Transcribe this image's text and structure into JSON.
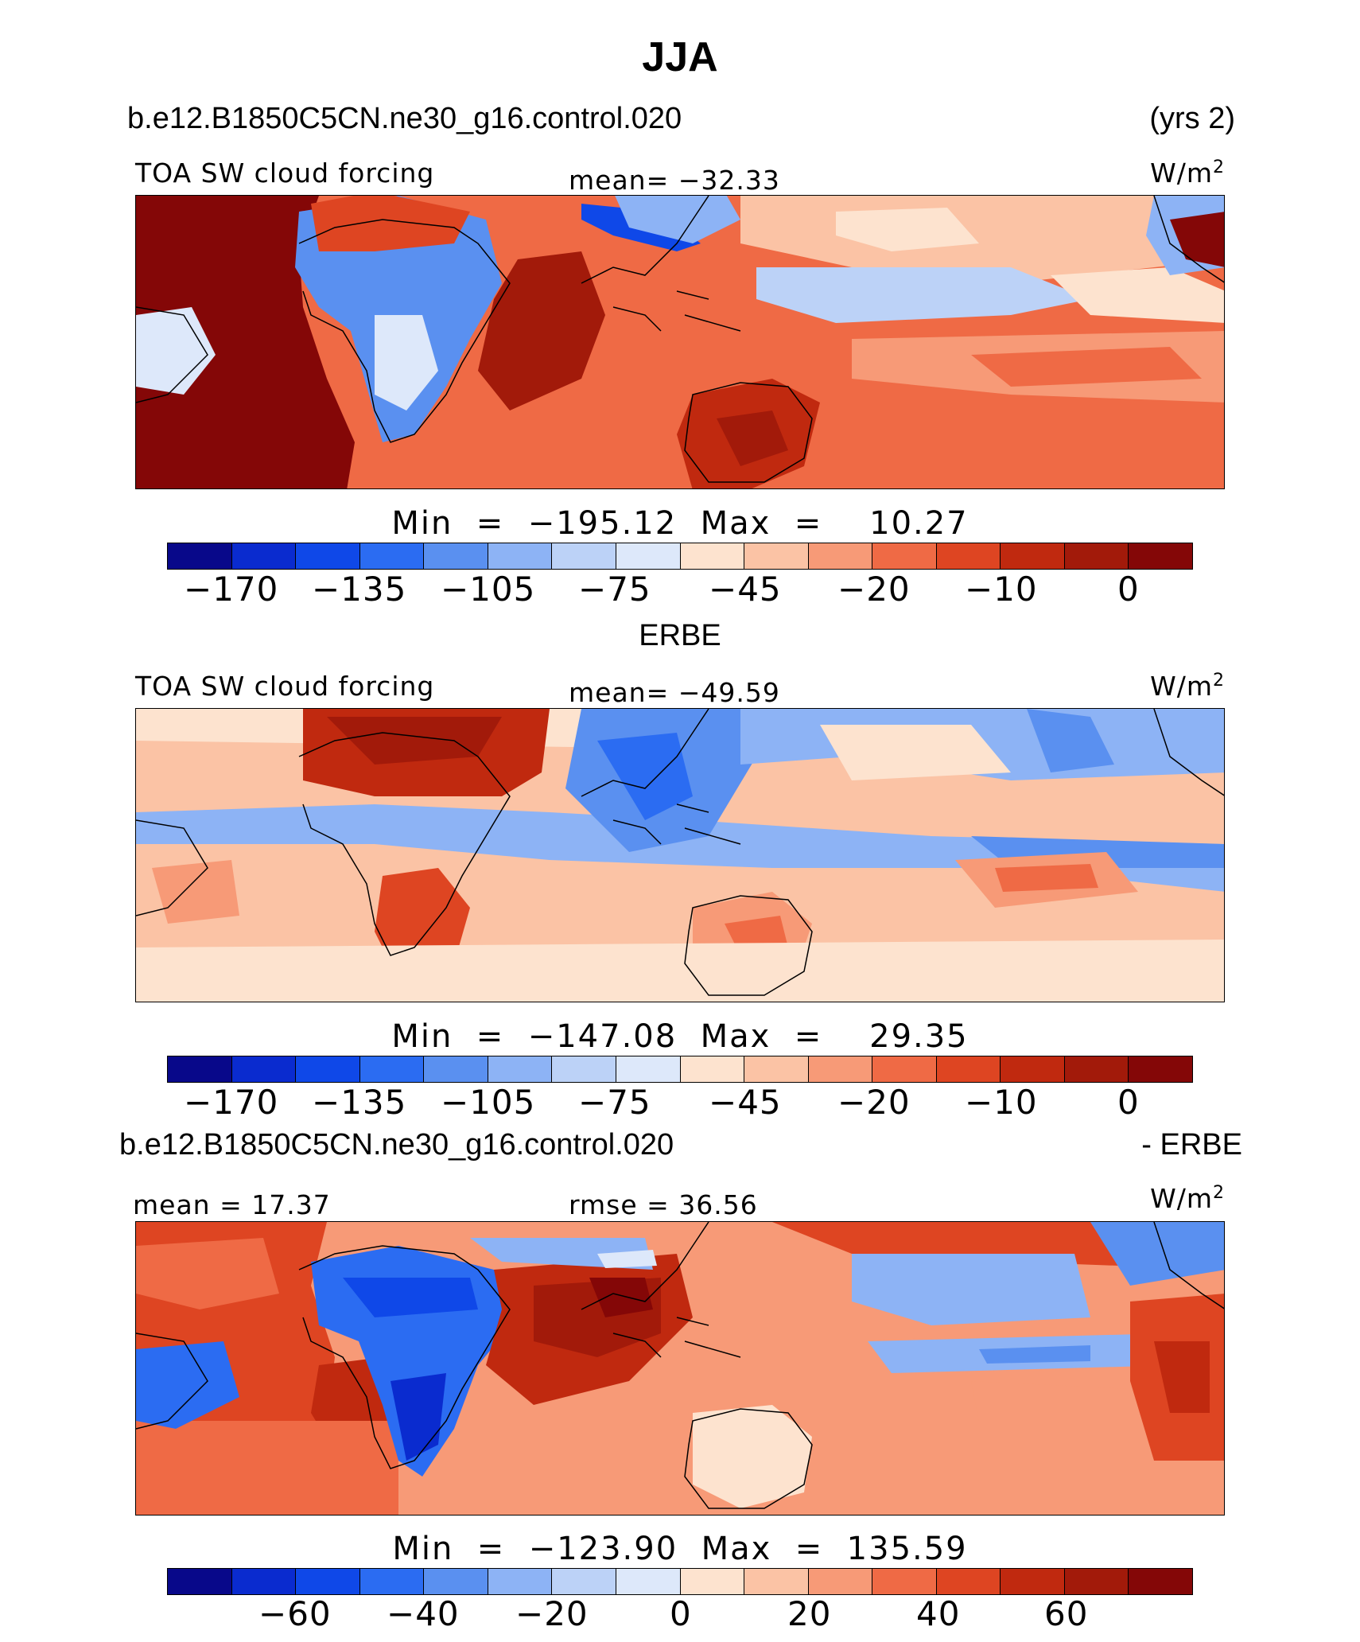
{
  "title": "JJA",
  "panels": [
    {
      "case_name": "b.e12.B1850C5CN.ne30_g16.control.020",
      "case_suffix": "(yrs 2)",
      "left_label": "TOA SW cloud forcing",
      "center_label": "mean=  −32.33",
      "units": "W/m",
      "units_sup": "2",
      "minmax": "Min  =  −195.12  Max  =    10.27",
      "ticks": [
        "−170",
        "−135",
        "−105",
        "−75",
        "−45",
        "−20",
        "−10",
        "0"
      ]
    },
    {
      "header": "ERBE",
      "left_label": "TOA SW cloud forcing",
      "center_label": "mean=  −49.59",
      "units": "W/m",
      "units_sup": "2",
      "minmax": "Min  =  −147.08  Max  =    29.35",
      "ticks": [
        "−170",
        "−135",
        "−105",
        "−75",
        "−45",
        "−20",
        "−10",
        "0"
      ]
    },
    {
      "case_name": "b.e12.B1850C5CN.ne30_g16.control.020",
      "case_suffix": "- ERBE",
      "left_label": "mean  =   17.37",
      "center_label": "rmse  =   36.56",
      "units": "W/m",
      "units_sup": "2",
      "minmax": "Min  =  −123.90  Max  =  135.59",
      "ticks": [
        "−60",
        "−40",
        "−20",
        "0",
        "20",
        "40",
        "60"
      ]
    }
  ],
  "colorbar_colors": [
    "#08088a",
    "#0a2bcf",
    "#0f48e8",
    "#2b6cf2",
    "#5a90f0",
    "#8db3f5",
    "#bcd2f7",
    "#dde8fa",
    "#fde3cf",
    "#fbc3a5",
    "#f79a77",
    "#ef6a45",
    "#de4522",
    "#c0290f",
    "#a21a0a",
    "#840707"
  ]
}
